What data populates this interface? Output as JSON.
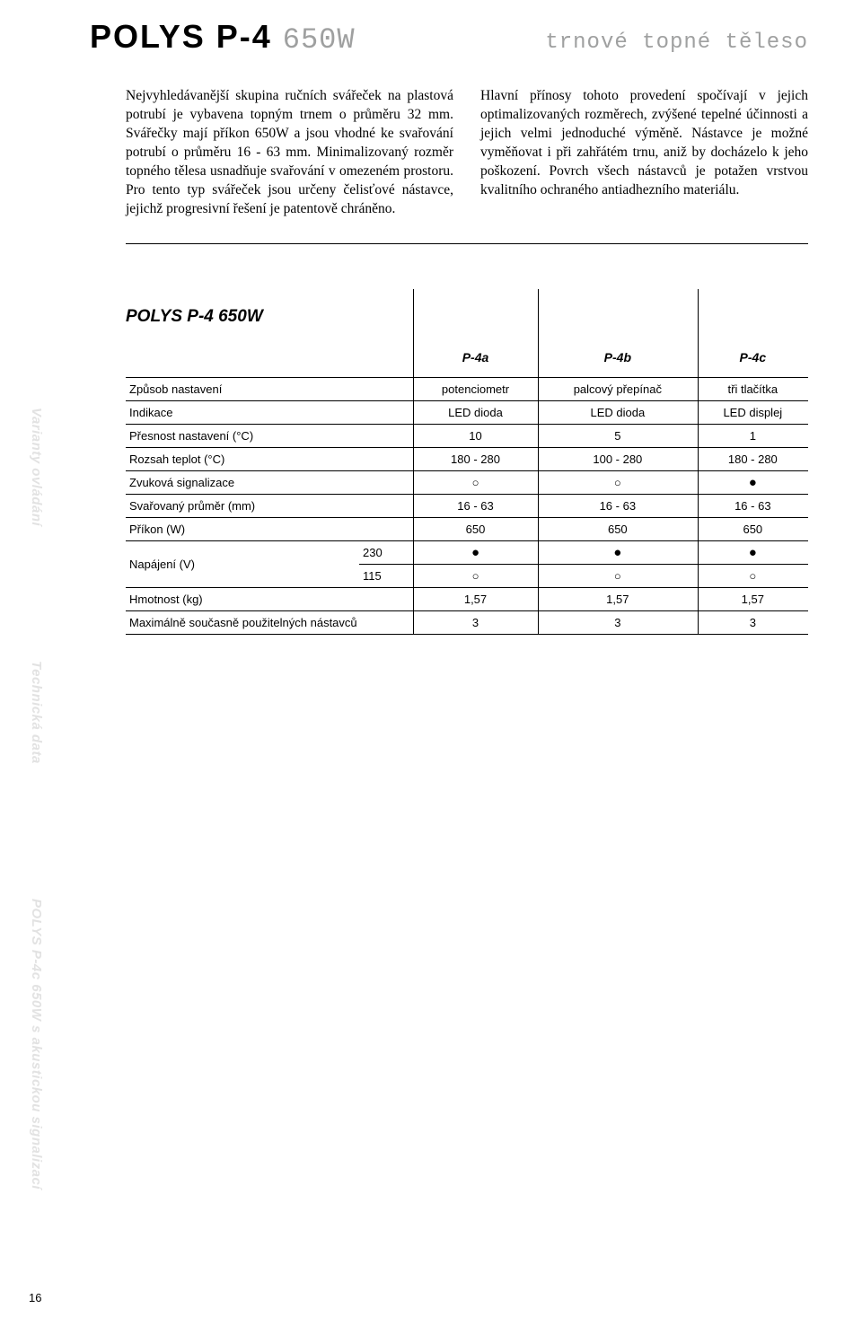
{
  "header": {
    "title_main": "POLYS P-4",
    "title_sub": "650W",
    "title_right": "trnové topné těleso"
  },
  "intro": {
    "left": "Nejvyhledávanější skupina ručních svářeček na plastová potrubí je vybavena topným trnem o průměru 32 mm. Svářečky mají příkon 650W a jsou vhodné ke svařování potrubí o průměru 16 - 63 mm. Minimalizovaný rozměr topného tělesa usnadňuje svařování v omezeném prostoru. Pro tento typ svářeček jsou určeny čelisťové nástavce, jejichž progresivní řešení je patentově chráněno.",
    "right": "Hlavní přínosy tohoto provedení spočívají v jejich optimalizovaných rozměrech, zvýšené tepelné účinnosti a jejich velmi jednoduché výměně. Nástavce je možné vyměňovat i při zahřátém trnu, aniž by docházelo k jeho poškození. Povrch všech nástavců je potažen vrstvou kvalitního ochraného antiadhezního materiálu."
  },
  "table": {
    "title": "POLYS P-4 650W",
    "columns": [
      "P-4a",
      "P-4b",
      "P-4c"
    ],
    "rows": [
      {
        "label": "Způsob nastavení",
        "cells": [
          "potenciometr",
          "palcový přepínač",
          "tři tlačítka"
        ]
      },
      {
        "label": "Indikace",
        "cells": [
          "LED dioda",
          "LED dioda",
          "LED displej"
        ]
      },
      {
        "label": "Přesnost nastavení (°C)",
        "cells": [
          "10",
          "5",
          "1"
        ]
      },
      {
        "label": "Rozsah teplot (°C)",
        "cells": [
          "180 - 280",
          "100 - 280",
          "180 - 280"
        ]
      },
      {
        "label": "Zvuková signalizace",
        "cells": [
          "empty",
          "empty",
          "full"
        ]
      },
      {
        "label": "Svařovaný průměr (mm)",
        "cells": [
          "16 - 63",
          "16 - 63",
          "16 - 63"
        ]
      },
      {
        "label": "Příkon (W)",
        "cells": [
          "650",
          "650",
          "650"
        ]
      }
    ],
    "voltage_label": "Napájení (V)",
    "voltage_rows": [
      {
        "sub": "230",
        "cells": [
          "full",
          "full",
          "full"
        ]
      },
      {
        "sub": "115",
        "cells": [
          "empty",
          "empty",
          "empty"
        ]
      }
    ],
    "rows_after": [
      {
        "label": "Hmotnost (kg)",
        "cells": [
          "1,57",
          "1,57",
          "1,57"
        ]
      },
      {
        "label": "Maximálně současně použitelných nástavců",
        "cells": [
          "3",
          "3",
          "3"
        ]
      }
    ]
  },
  "side_labels": [
    "Varianty ovládání",
    "Technická data",
    "POLYS P-4c 650W s akustickou signalizací"
  ],
  "page_number": "16",
  "symbols": {
    "full": "●",
    "empty": "○"
  },
  "colors": {
    "light_text": "#9fa0a0",
    "side_label": "#e2e2e2",
    "border": "#000000",
    "background": "#ffffff"
  }
}
